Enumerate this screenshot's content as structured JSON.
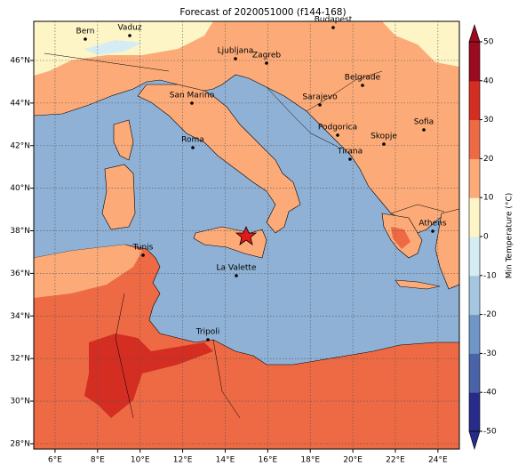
{
  "title": "Forecast of 2020051000 (f144-168)",
  "cities": [
    "Bern",
    "Vaduz",
    "Budapest",
    "Ljubljana",
    "Zagreb",
    "Belgrade",
    "Sarajevo",
    "San Marino",
    "Sofia",
    "Podgorica",
    "Skopje",
    "Roma",
    "Tirana",
    "Athens",
    "Tunis",
    "La Valette",
    "Tripoli"
  ],
  "lon_ticks": [
    {
      "value": 6,
      "label": "6°E"
    },
    {
      "value": 8,
      "label": "8°E"
    },
    {
      "value": 10,
      "label": "10°E"
    },
    {
      "value": 12,
      "label": "12°E"
    },
    {
      "value": 14,
      "label": "14°E"
    },
    {
      "value": 16,
      "label": "16°E"
    },
    {
      "value": 18,
      "label": "18°E"
    },
    {
      "value": 20,
      "label": "20°E"
    },
    {
      "value": 22,
      "label": "22°E"
    },
    {
      "value": 24,
      "label": "24°E"
    }
  ],
  "lat_ticks": [
    {
      "value": 28,
      "label": "28°N"
    },
    {
      "value": 30,
      "label": "30°N"
    },
    {
      "value": 32,
      "label": "32°N"
    },
    {
      "value": 34,
      "label": "34°N"
    },
    {
      "value": 36,
      "label": "36°N"
    },
    {
      "value": 38,
      "label": "38°N"
    },
    {
      "value": 40,
      "label": "40°N"
    },
    {
      "value": 42,
      "label": "42°N"
    },
    {
      "value": 44,
      "label": "44°N"
    },
    {
      "value": 46,
      "label": "46°N"
    }
  ],
  "colorbar": {
    "label": "Min Temperature (°C)",
    "ticks": [
      -50,
      -40,
      -30,
      -20,
      -10,
      0,
      10,
      20,
      30,
      40,
      50
    ],
    "colors": [
      "#272b8a",
      "#4a63a8",
      "#6e96c6",
      "#a4c6e0",
      "#d6ecf3",
      "#fdf5c6",
      "#fcab78",
      "#ee6a44",
      "#d42d22",
      "#9b0a1f"
    ]
  }
}
